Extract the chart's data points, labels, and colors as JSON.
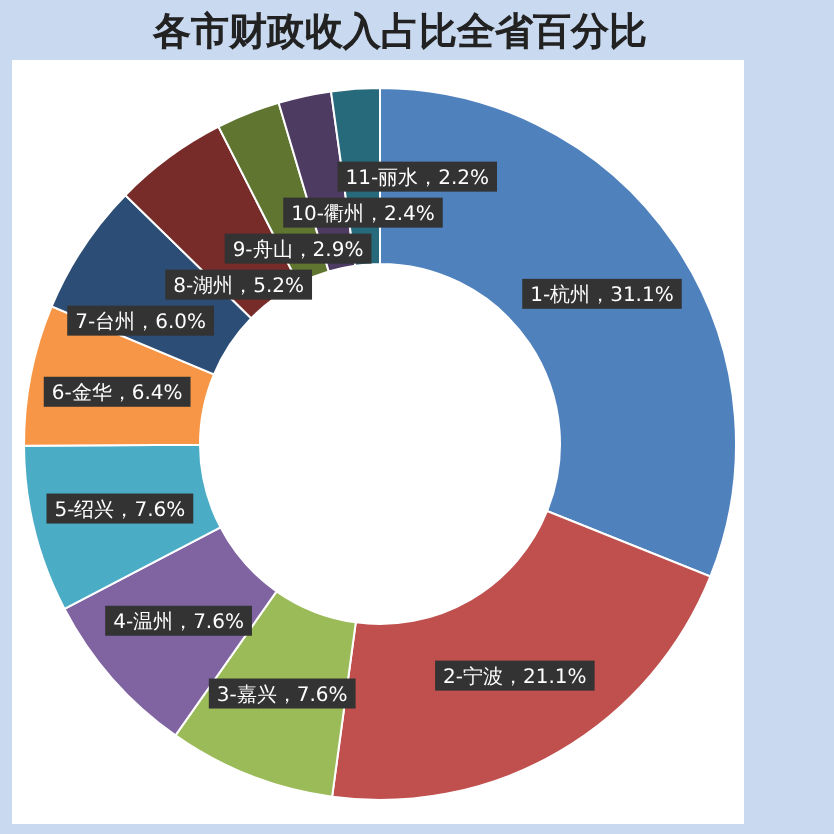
{
  "chart_data": {
    "type": "donut",
    "title": "各市财政收入占比全省百分比",
    "categories": [
      "1-杭州",
      "2-宁波",
      "3-嘉兴",
      "4-温州",
      "5-绍兴",
      "6-金华",
      "7-台州",
      "8-湖州",
      "9-舟山",
      "10-衢州",
      "11-丽水"
    ],
    "values": [
      31.1,
      21.1,
      7.6,
      7.6,
      7.6,
      6.4,
      6.0,
      5.2,
      2.9,
      2.4,
      2.2
    ],
    "value_labels": [
      "，31.1%",
      "，21.1%",
      "，7.6%",
      "，7.6%",
      "，7.6%",
      "，6.4%",
      "，6.0%",
      "，5.2%",
      "，2.9%",
      "，2.4%",
      "，2.2%"
    ],
    "colors": [
      "#4f81bd",
      "#c0504d",
      "#9bbb59",
      "#8064a2",
      "#4bacc6",
      "#f79646",
      "#2c4d75",
      "#772c2a",
      "#5f7530",
      "#4d3b62",
      "#276a7c"
    ]
  }
}
